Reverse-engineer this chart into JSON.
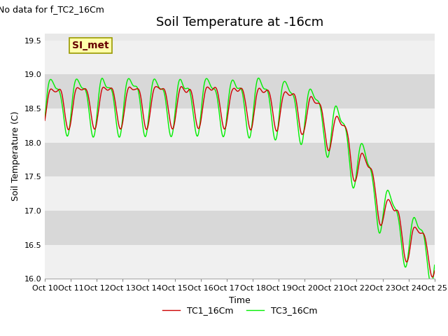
{
  "title": "Soil Temperature at -16cm",
  "xlabel": "Time",
  "ylabel": "Soil Temperature (C)",
  "top_left_text": "No data for f_TC2_16Cm",
  "ylim": [
    16.0,
    19.6
  ],
  "yticks": [
    16.0,
    16.5,
    17.0,
    17.5,
    18.0,
    18.5,
    19.0,
    19.5
  ],
  "xtick_labels": [
    "Oct 10",
    "Oct 11",
    "Oct 12",
    "Oct 13",
    "Oct 14",
    "Oct 15",
    "Oct 16",
    "Oct 17",
    "Oct 18",
    "Oct 19",
    "Oct 20",
    "Oct 21",
    "Oct 22",
    "Oct 23",
    "Oct 24",
    "Oct 25"
  ],
  "tc1_color": "#cc0000",
  "tc3_color": "#00ee00",
  "tc1_label": "TC1_16Cm",
  "tc3_label": "TC3_16Cm",
  "simet_label": "SI_met",
  "simet_box_color": "#ffffaa",
  "simet_text_color": "#660000",
  "background_color": "#ffffff",
  "plot_bg_color": "#e8e8e8",
  "band_color": "#d8d8d8",
  "grid_color": "#f0f0f0",
  "title_fontsize": 13,
  "axis_fontsize": 9,
  "tick_fontsize": 8,
  "legend_fontsize": 9
}
